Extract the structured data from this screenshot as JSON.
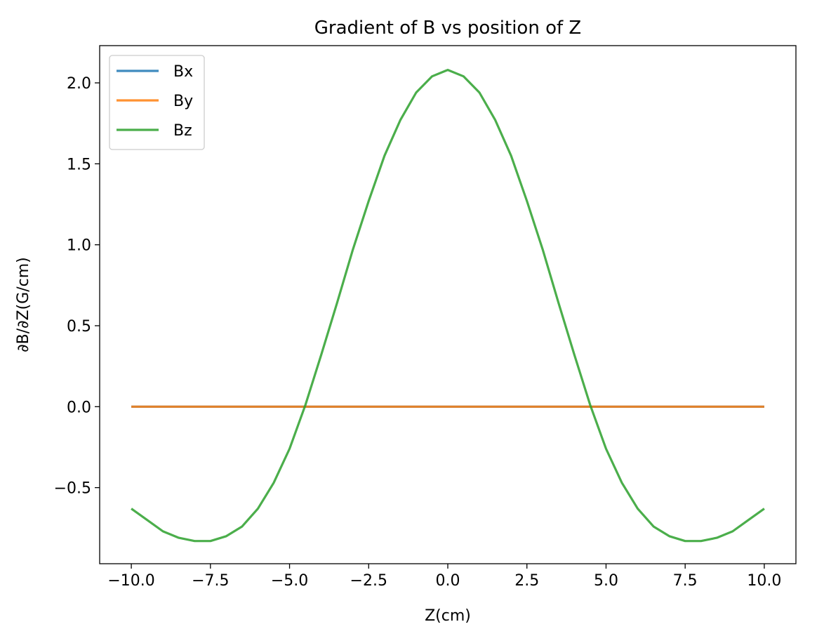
{
  "chart_data": {
    "type": "line",
    "title": "Gradient of B vs position of Z",
    "xlabel": "Z(cm)",
    "ylabel": "∂B/∂Z(G/cm)",
    "xlim": [
      -11.0,
      11.0
    ],
    "ylim": [
      -0.97,
      2.23
    ],
    "xticks": [
      -10.0,
      -7.5,
      -5.0,
      -2.5,
      0.0,
      2.5,
      5.0,
      7.5,
      10.0
    ],
    "xtick_labels": [
      "−10.0",
      "−7.5",
      "−5.0",
      "−2.5",
      "0.0",
      "2.5",
      "5.0",
      "7.5",
      "10.0"
    ],
    "yticks": [
      -0.5,
      0.0,
      0.5,
      1.0,
      1.5,
      2.0
    ],
    "ytick_labels": [
      "−0.5",
      "0.0",
      "0.5",
      "1.0",
      "1.5",
      "2.0"
    ],
    "grid": false,
    "legend_position": "upper-left",
    "x": [
      -10.0,
      -9.5,
      -9.0,
      -8.5,
      -8.0,
      -7.5,
      -7.0,
      -6.5,
      -6.0,
      -5.5,
      -5.0,
      -4.5,
      -4.0,
      -3.5,
      -3.0,
      -2.5,
      -2.0,
      -1.5,
      -1.0,
      -0.5,
      0.0,
      0.5,
      1.0,
      1.5,
      2.0,
      2.5,
      3.0,
      3.5,
      4.0,
      4.5,
      5.0,
      5.5,
      6.0,
      6.5,
      7.0,
      7.5,
      8.0,
      8.5,
      9.0,
      9.5,
      10.0
    ],
    "series": [
      {
        "name": "Bx",
        "color": "#1f77b4",
        "values": [
          0,
          0,
          0,
          0,
          0,
          0,
          0,
          0,
          0,
          0,
          0,
          0,
          0,
          0,
          0,
          0,
          0,
          0,
          0,
          0,
          0,
          0,
          0,
          0,
          0,
          0,
          0,
          0,
          0,
          0,
          0,
          0,
          0,
          0,
          0,
          0,
          0,
          0,
          0,
          0,
          0
        ]
      },
      {
        "name": "By",
        "color": "#ff7f0e",
        "values": [
          0,
          0,
          0,
          0,
          0,
          0,
          0,
          0,
          0,
          0,
          0,
          0,
          0,
          0,
          0,
          0,
          0,
          0,
          0,
          0,
          0,
          0,
          0,
          0,
          0,
          0,
          0,
          0,
          0,
          0,
          0,
          0,
          0,
          0,
          0,
          0,
          0,
          0,
          0,
          0,
          0
        ]
      },
      {
        "name": "Bz",
        "color": "#2ca02c",
        "values": [
          -0.63,
          -0.7,
          -0.77,
          -0.81,
          -0.83,
          -0.83,
          -0.8,
          -0.74,
          -0.63,
          -0.47,
          -0.26,
          0.01,
          0.32,
          0.64,
          0.97,
          1.27,
          1.55,
          1.77,
          1.94,
          2.04,
          2.08,
          2.04,
          1.94,
          1.77,
          1.55,
          1.27,
          0.97,
          0.64,
          0.32,
          0.01,
          -0.26,
          -0.47,
          -0.63,
          -0.74,
          -0.8,
          -0.83,
          -0.83,
          -0.81,
          -0.77,
          -0.7,
          -0.63
        ]
      }
    ]
  }
}
